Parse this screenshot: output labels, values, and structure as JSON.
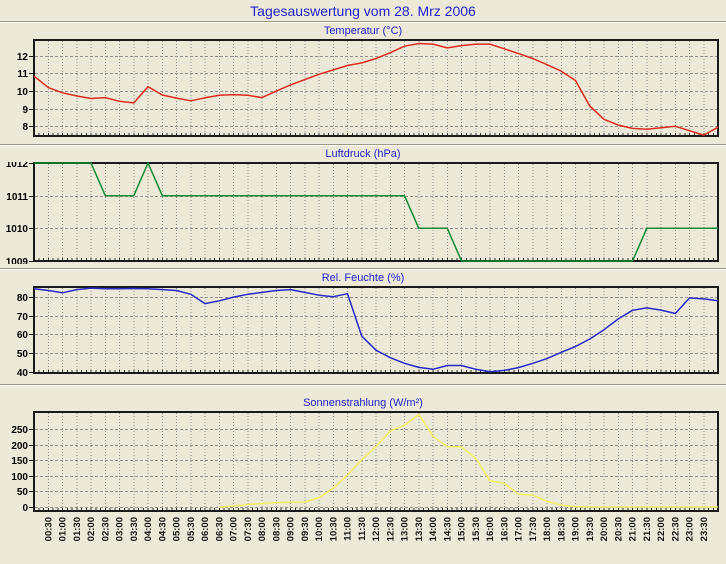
{
  "page": {
    "title": "Tagesauswertung vom 28. Mrz 2006",
    "title_color": "#2222CC",
    "background": "#ECE9D8"
  },
  "time_labels": [
    "00:30",
    "01:00",
    "01:30",
    "02:00",
    "02:30",
    "03:00",
    "03:30",
    "04:00",
    "04:30",
    "05:00",
    "05:30",
    "06:00",
    "06:30",
    "07:00",
    "07:30",
    "08:00",
    "08:30",
    "09:00",
    "09:30",
    "10:00",
    "10:30",
    "11:00",
    "11:30",
    "12:00",
    "12:30",
    "13:00",
    "13:30",
    "14:00",
    "14:30",
    "15:00",
    "15:30",
    "16:00",
    "16:30",
    "17:00",
    "17:30",
    "18:00",
    "18:30",
    "19:00",
    "19:30",
    "20:00",
    "20:30",
    "21:00",
    "21:30",
    "22:00",
    "22:30",
    "23:00",
    "23:30"
  ],
  "chart_data": [
    {
      "type": "line",
      "title": "Temperatur (°C)",
      "color": "#DC2A20",
      "x_start": "00:00",
      "x_step_minutes": 30,
      "y_ticks": [
        8,
        9,
        10,
        11,
        12
      ],
      "ylim": [
        7.45,
        12.9
      ],
      "grid": true,
      "values": [
        10.85,
        10.2,
        9.9,
        9.72,
        9.58,
        9.63,
        9.42,
        9.33,
        10.25,
        9.78,
        9.6,
        9.45,
        9.62,
        9.76,
        9.8,
        9.76,
        9.63,
        10.0,
        10.35,
        10.65,
        10.95,
        11.2,
        11.45,
        11.6,
        11.85,
        12.18,
        12.55,
        12.7,
        12.67,
        12.45,
        12.58,
        12.67,
        12.67,
        12.4,
        12.13,
        11.85,
        11.5,
        11.13,
        10.6,
        9.15,
        8.4,
        8.07,
        7.88,
        7.83,
        7.92,
        8.0,
        7.75,
        7.5,
        7.95
      ]
    },
    {
      "type": "line",
      "title": "Luftdruck (hPa)",
      "color": "#118C35",
      "x_start": "00:00",
      "x_step_minutes": 30,
      "y_ticks": [
        1009,
        1010,
        1011,
        1012
      ],
      "ylim": [
        1009,
        1012
      ],
      "grid": true,
      "values": [
        1012,
        1012,
        1012,
        1012,
        1012,
        1011,
        1011,
        1011,
        1012,
        1011,
        1011,
        1011,
        1011,
        1011,
        1011,
        1011,
        1011,
        1011,
        1011,
        1011,
        1011,
        1011,
        1011,
        1011,
        1011,
        1011,
        1011,
        1010,
        1010,
        1010,
        1009,
        1009,
        1009,
        1009,
        1009,
        1009,
        1009,
        1009,
        1009,
        1009,
        1009,
        1009,
        1009,
        1010,
        1010,
        1010,
        1010,
        1010,
        1010
      ]
    },
    {
      "type": "line",
      "title": "Rel. Feuchte (%)",
      "color": "#2828C8",
      "x_start": "00:00",
      "x_step_minutes": 30,
      "y_ticks": [
        40,
        50,
        60,
        70,
        80
      ],
      "ylim": [
        39.3,
        85.4
      ],
      "grid": true,
      "values": [
        84.5,
        83.5,
        82.3,
        84.0,
        84.8,
        84.5,
        84.5,
        84.6,
        84.5,
        84.0,
        83.5,
        81.5,
        76.5,
        78.0,
        80.0,
        81.5,
        82.5,
        83.5,
        84.0,
        82.5,
        81.0,
        80.2,
        81.8,
        59.0,
        51.5,
        47.5,
        44.5,
        42.3,
        41.3,
        43.3,
        43.3,
        41.3,
        40.0,
        40.7,
        42.2,
        44.5,
        47.0,
        50.4,
        53.5,
        57.5,
        62.5,
        68.3,
        72.9,
        74.2,
        73.0,
        71.2,
        79.5,
        79.0,
        78.0
      ]
    },
    {
      "type": "line",
      "title": "Sonnenstrahlung (W/m²)",
      "color": "#F2EF60",
      "x_start": "00:00",
      "x_step_minutes": 30,
      "y_ticks": [
        0,
        50,
        100,
        150,
        200,
        250
      ],
      "ylim": [
        -13,
        305
      ],
      "grid": true,
      "values": [
        null,
        null,
        null,
        null,
        null,
        null,
        null,
        null,
        null,
        null,
        null,
        null,
        null,
        0,
        3,
        8,
        11,
        14,
        15,
        16,
        30,
        60,
        103,
        152,
        194,
        245,
        262,
        297,
        227,
        194,
        193,
        156,
        84,
        76,
        41,
        38,
        18,
        6,
        1,
        0,
        0,
        0,
        0,
        0,
        0,
        0,
        0,
        0,
        0
      ]
    }
  ]
}
